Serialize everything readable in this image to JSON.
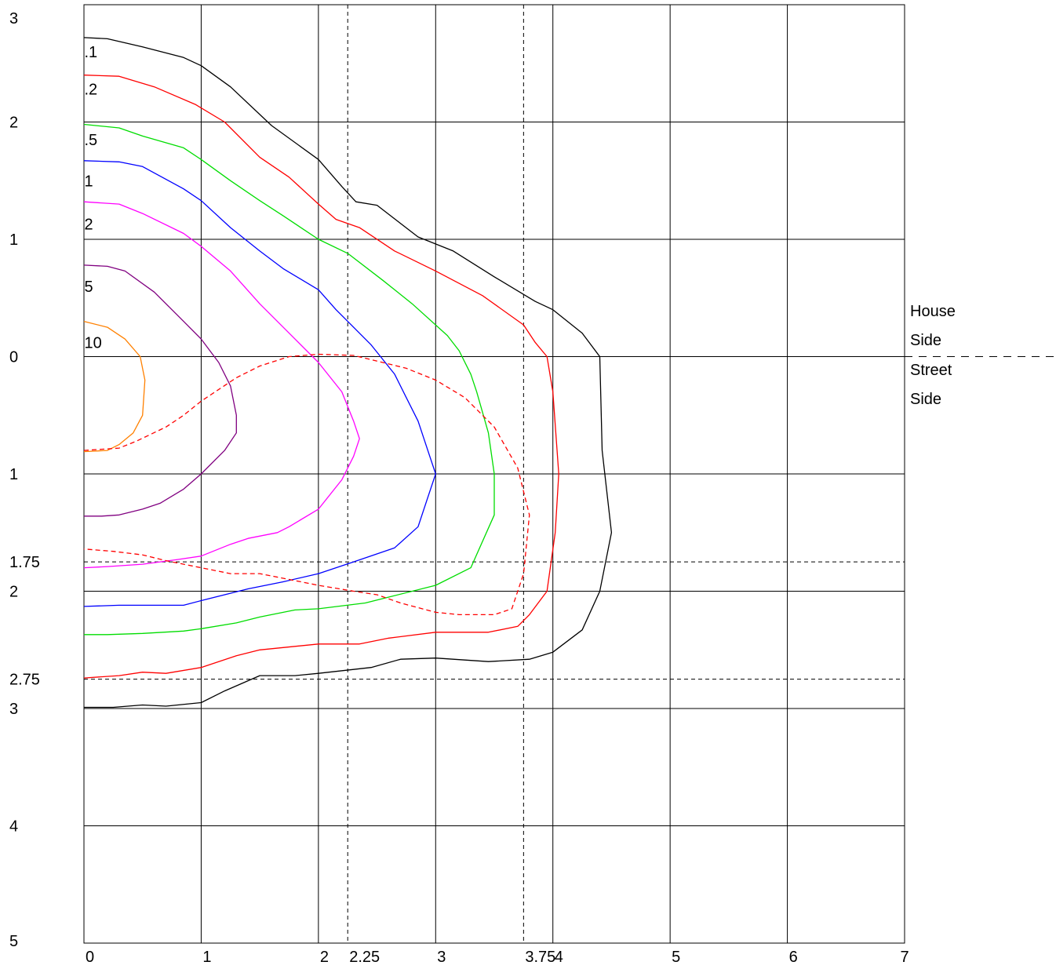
{
  "chart_data": {
    "type": "line",
    "title": "",
    "xlabel": "",
    "ylabel": "",
    "xlim": [
      0,
      7
    ],
    "ylim": [
      -5,
      3
    ],
    "grid": true,
    "x_ticks": [
      {
        "value": 0,
        "label": "0"
      },
      {
        "value": 1,
        "label": "1"
      },
      {
        "value": 2,
        "label": "2"
      },
      {
        "value": 2.25,
        "label": "2.25"
      },
      {
        "value": 3,
        "label": "3"
      },
      {
        "value": 3.75,
        "label": "3.75"
      },
      {
        "value": 4,
        "label": "4"
      },
      {
        "value": 5,
        "label": "5"
      },
      {
        "value": 6,
        "label": "6"
      },
      {
        "value": 7,
        "label": "7"
      }
    ],
    "y_ticks": [
      {
        "value": 3,
        "label": "3"
      },
      {
        "value": 2,
        "label": "2"
      },
      {
        "value": 1,
        "label": "1"
      },
      {
        "value": 0,
        "label": "0"
      },
      {
        "value": -1,
        "label": "1"
      },
      {
        "value": -1.75,
        "label": "1.75"
      },
      {
        "value": -2,
        "label": "2"
      },
      {
        "value": -2.75,
        "label": "2.75"
      },
      {
        "value": -3,
        "label": "3"
      },
      {
        "value": -4,
        "label": "4"
      },
      {
        "value": -5,
        "label": "5"
      }
    ],
    "grid_x": [
      1,
      2,
      3,
      4,
      5,
      6
    ],
    "grid_y": [
      2,
      1,
      0,
      -1,
      -2,
      -3,
      -4
    ],
    "reference_lines": {
      "vertical": [
        2.25,
        3.75
      ],
      "horizontal": [
        -1.75,
        -2.75
      ],
      "divider_y": 0
    },
    "side_labels": {
      "house": [
        "House",
        "Side"
      ],
      "street": [
        "Street",
        "Side"
      ]
    },
    "series": [
      {
        "label": ".1",
        "color": "#000000",
        "style": "solid",
        "label_at": [
          0.03,
          2.6
        ],
        "points": [
          [
            0,
            2.72
          ],
          [
            0.2,
            2.71
          ],
          [
            0.5,
            2.64
          ],
          [
            0.85,
            2.55
          ],
          [
            1.0,
            2.48
          ],
          [
            1.25,
            2.3
          ],
          [
            1.6,
            1.97
          ],
          [
            2.0,
            1.68
          ],
          [
            2.2,
            1.45
          ],
          [
            2.32,
            1.32
          ],
          [
            2.5,
            1.29
          ],
          [
            2.85,
            1.02
          ],
          [
            3.15,
            0.9
          ],
          [
            3.5,
            0.68
          ],
          [
            3.85,
            0.47
          ],
          [
            4.0,
            0.4
          ],
          [
            4.25,
            0.2
          ],
          [
            4.4,
            0.0
          ],
          [
            4.42,
            -0.8
          ],
          [
            4.5,
            -1.5
          ],
          [
            4.4,
            -2.0
          ],
          [
            4.25,
            -2.33
          ],
          [
            4.0,
            -2.52
          ],
          [
            3.8,
            -2.58
          ],
          [
            3.45,
            -2.6
          ],
          [
            3.0,
            -2.57
          ],
          [
            2.7,
            -2.58
          ],
          [
            2.45,
            -2.65
          ],
          [
            2.0,
            -2.7
          ],
          [
            1.8,
            -2.72
          ],
          [
            1.5,
            -2.72
          ],
          [
            1.2,
            -2.85
          ],
          [
            1.0,
            -2.95
          ],
          [
            0.7,
            -2.98
          ],
          [
            0.5,
            -2.97
          ],
          [
            0.25,
            -2.99
          ],
          [
            0,
            -2.99
          ]
        ]
      },
      {
        "label": ".2",
        "color": "#ff0000",
        "style": "solid",
        "label_at": [
          0.03,
          2.28
        ],
        "points": [
          [
            0,
            2.4
          ],
          [
            0.3,
            2.39
          ],
          [
            0.6,
            2.3
          ],
          [
            0.95,
            2.15
          ],
          [
            1.2,
            2.0
          ],
          [
            1.5,
            1.7
          ],
          [
            1.75,
            1.53
          ],
          [
            2.0,
            1.3
          ],
          [
            2.15,
            1.17
          ],
          [
            2.35,
            1.1
          ],
          [
            2.65,
            0.9
          ],
          [
            3.0,
            0.73
          ],
          [
            3.4,
            0.52
          ],
          [
            3.75,
            0.27
          ],
          [
            3.85,
            0.12
          ],
          [
            3.95,
            0.0
          ],
          [
            4.0,
            -0.3
          ],
          [
            4.05,
            -1.0
          ],
          [
            4.02,
            -1.5
          ],
          [
            3.95,
            -2.0
          ],
          [
            3.8,
            -2.2
          ],
          [
            3.7,
            -2.3
          ],
          [
            3.45,
            -2.35
          ],
          [
            3.0,
            -2.35
          ],
          [
            2.6,
            -2.4
          ],
          [
            2.35,
            -2.45
          ],
          [
            2.0,
            -2.45
          ],
          [
            1.7,
            -2.48
          ],
          [
            1.5,
            -2.5
          ],
          [
            1.3,
            -2.55
          ],
          [
            1.0,
            -2.65
          ],
          [
            0.7,
            -2.7
          ],
          [
            0.5,
            -2.69
          ],
          [
            0.3,
            -2.72
          ],
          [
            0,
            -2.74
          ]
        ]
      },
      {
        "label": ".5",
        "color": "#00dd00",
        "style": "solid",
        "label_at": [
          0.03,
          1.85
        ],
        "points": [
          [
            0,
            1.98
          ],
          [
            0.3,
            1.95
          ],
          [
            0.5,
            1.88
          ],
          [
            0.85,
            1.78
          ],
          [
            1.0,
            1.68
          ],
          [
            1.25,
            1.5
          ],
          [
            1.5,
            1.33
          ],
          [
            1.7,
            1.2
          ],
          [
            2.0,
            1.0
          ],
          [
            2.25,
            0.88
          ],
          [
            2.55,
            0.65
          ],
          [
            2.8,
            0.45
          ],
          [
            3.1,
            0.18
          ],
          [
            3.2,
            0.05
          ],
          [
            3.3,
            -0.15
          ],
          [
            3.35,
            -0.3
          ],
          [
            3.45,
            -0.65
          ],
          [
            3.5,
            -1.0
          ],
          [
            3.5,
            -1.35
          ],
          [
            3.3,
            -1.8
          ],
          [
            3.0,
            -1.95
          ],
          [
            2.6,
            -2.05
          ],
          [
            2.4,
            -2.1
          ],
          [
            2.0,
            -2.15
          ],
          [
            1.8,
            -2.16
          ],
          [
            1.5,
            -2.22
          ],
          [
            1.3,
            -2.27
          ],
          [
            1.0,
            -2.32
          ],
          [
            0.85,
            -2.34
          ],
          [
            0.5,
            -2.36
          ],
          [
            0.2,
            -2.37
          ],
          [
            0,
            -2.37
          ]
        ]
      },
      {
        "label": "1",
        "color": "#0000ff",
        "style": "solid",
        "label_at": [
          0.03,
          1.5
        ],
        "points": [
          [
            0,
            1.67
          ],
          [
            0.3,
            1.66
          ],
          [
            0.5,
            1.62
          ],
          [
            0.85,
            1.43
          ],
          [
            1.0,
            1.33
          ],
          [
            1.25,
            1.1
          ],
          [
            1.5,
            0.9
          ],
          [
            1.7,
            0.75
          ],
          [
            2.0,
            0.57
          ],
          [
            2.15,
            0.4
          ],
          [
            2.25,
            0.3
          ],
          [
            2.45,
            0.1
          ],
          [
            2.65,
            -0.15
          ],
          [
            2.75,
            -0.35
          ],
          [
            2.85,
            -0.55
          ],
          [
            2.95,
            -0.85
          ],
          [
            3.0,
            -1.0
          ],
          [
            2.95,
            -1.15
          ],
          [
            2.85,
            -1.45
          ],
          [
            2.65,
            -1.63
          ],
          [
            2.3,
            -1.75
          ],
          [
            2.0,
            -1.85
          ],
          [
            1.7,
            -1.92
          ],
          [
            1.4,
            -1.98
          ],
          [
            1.0,
            -2.08
          ],
          [
            0.85,
            -2.12
          ],
          [
            0.6,
            -2.12
          ],
          [
            0.3,
            -2.12
          ],
          [
            0,
            -2.13
          ]
        ]
      },
      {
        "label": "2",
        "color": "#ff00ff",
        "style": "solid",
        "label_at": [
          0.03,
          1.13
        ],
        "points": [
          [
            0,
            1.32
          ],
          [
            0.3,
            1.3
          ],
          [
            0.5,
            1.22
          ],
          [
            0.85,
            1.05
          ],
          [
            1.0,
            0.94
          ],
          [
            1.25,
            0.73
          ],
          [
            1.5,
            0.45
          ],
          [
            1.75,
            0.2
          ],
          [
            2.0,
            -0.05
          ],
          [
            2.2,
            -0.3
          ],
          [
            2.3,
            -0.55
          ],
          [
            2.35,
            -0.7
          ],
          [
            2.3,
            -0.85
          ],
          [
            2.2,
            -1.05
          ],
          [
            2.0,
            -1.3
          ],
          [
            1.75,
            -1.45
          ],
          [
            1.65,
            -1.5
          ],
          [
            1.4,
            -1.55
          ],
          [
            1.25,
            -1.6
          ],
          [
            1.0,
            -1.7
          ],
          [
            0.8,
            -1.73
          ],
          [
            0.5,
            -1.77
          ],
          [
            0.2,
            -1.79
          ],
          [
            0,
            -1.8
          ]
        ]
      },
      {
        "label": "5",
        "color": "#800080",
        "style": "solid",
        "label_at": [
          0.03,
          0.6
        ],
        "points": [
          [
            0,
            0.78
          ],
          [
            0.2,
            0.77
          ],
          [
            0.35,
            0.73
          ],
          [
            0.6,
            0.55
          ],
          [
            0.85,
            0.3
          ],
          [
            1.0,
            0.15
          ],
          [
            1.15,
            -0.05
          ],
          [
            1.25,
            -0.25
          ],
          [
            1.3,
            -0.5
          ],
          [
            1.3,
            -0.65
          ],
          [
            1.2,
            -0.8
          ],
          [
            1.0,
            -1.0
          ],
          [
            0.85,
            -1.13
          ],
          [
            0.65,
            -1.25
          ],
          [
            0.5,
            -1.3
          ],
          [
            0.3,
            -1.35
          ],
          [
            0.15,
            -1.36
          ],
          [
            0,
            -1.36
          ]
        ]
      },
      {
        "label": "10",
        "color": "#ff8000",
        "style": "solid",
        "label_at": [
          0.03,
          0.12
        ],
        "points": [
          [
            0,
            0.3
          ],
          [
            0.2,
            0.25
          ],
          [
            0.35,
            0.15
          ],
          [
            0.48,
            0.0
          ],
          [
            0.52,
            -0.2
          ],
          [
            0.5,
            -0.5
          ],
          [
            0.42,
            -0.65
          ],
          [
            0.3,
            -0.75
          ],
          [
            0.2,
            -0.8
          ],
          [
            0,
            -0.81
          ]
        ]
      },
      {
        "label": "",
        "color": "#ff0000",
        "style": "dashed",
        "label_at": null,
        "points": [
          [
            0,
            -0.8
          ],
          [
            0.3,
            -0.78
          ],
          [
            0.45,
            -0.72
          ],
          [
            0.7,
            -0.6
          ],
          [
            0.85,
            -0.5
          ],
          [
            1.0,
            -0.38
          ],
          [
            1.3,
            -0.18
          ],
          [
            1.5,
            -0.08
          ],
          [
            1.75,
            0.0
          ],
          [
            2.0,
            0.02
          ],
          [
            2.3,
            0.01
          ],
          [
            2.55,
            -0.05
          ],
          [
            2.75,
            -0.1
          ],
          [
            3.0,
            -0.2
          ],
          [
            3.25,
            -0.35
          ],
          [
            3.5,
            -0.6
          ],
          [
            3.7,
            -0.95
          ],
          [
            3.8,
            -1.35
          ],
          [
            3.75,
            -1.85
          ],
          [
            3.65,
            -2.15
          ],
          [
            3.5,
            -2.2
          ],
          [
            3.2,
            -2.2
          ],
          [
            3.0,
            -2.18
          ],
          [
            2.7,
            -2.1
          ],
          [
            2.5,
            -2.03
          ],
          [
            2.3,
            -2.0
          ],
          [
            2.0,
            -1.95
          ],
          [
            1.75,
            -1.9
          ],
          [
            1.5,
            -1.85
          ],
          [
            1.25,
            -1.85
          ],
          [
            1.0,
            -1.8
          ],
          [
            0.7,
            -1.74
          ],
          [
            0.5,
            -1.69
          ],
          [
            0.25,
            -1.66
          ],
          [
            0,
            -1.64
          ]
        ]
      }
    ]
  }
}
